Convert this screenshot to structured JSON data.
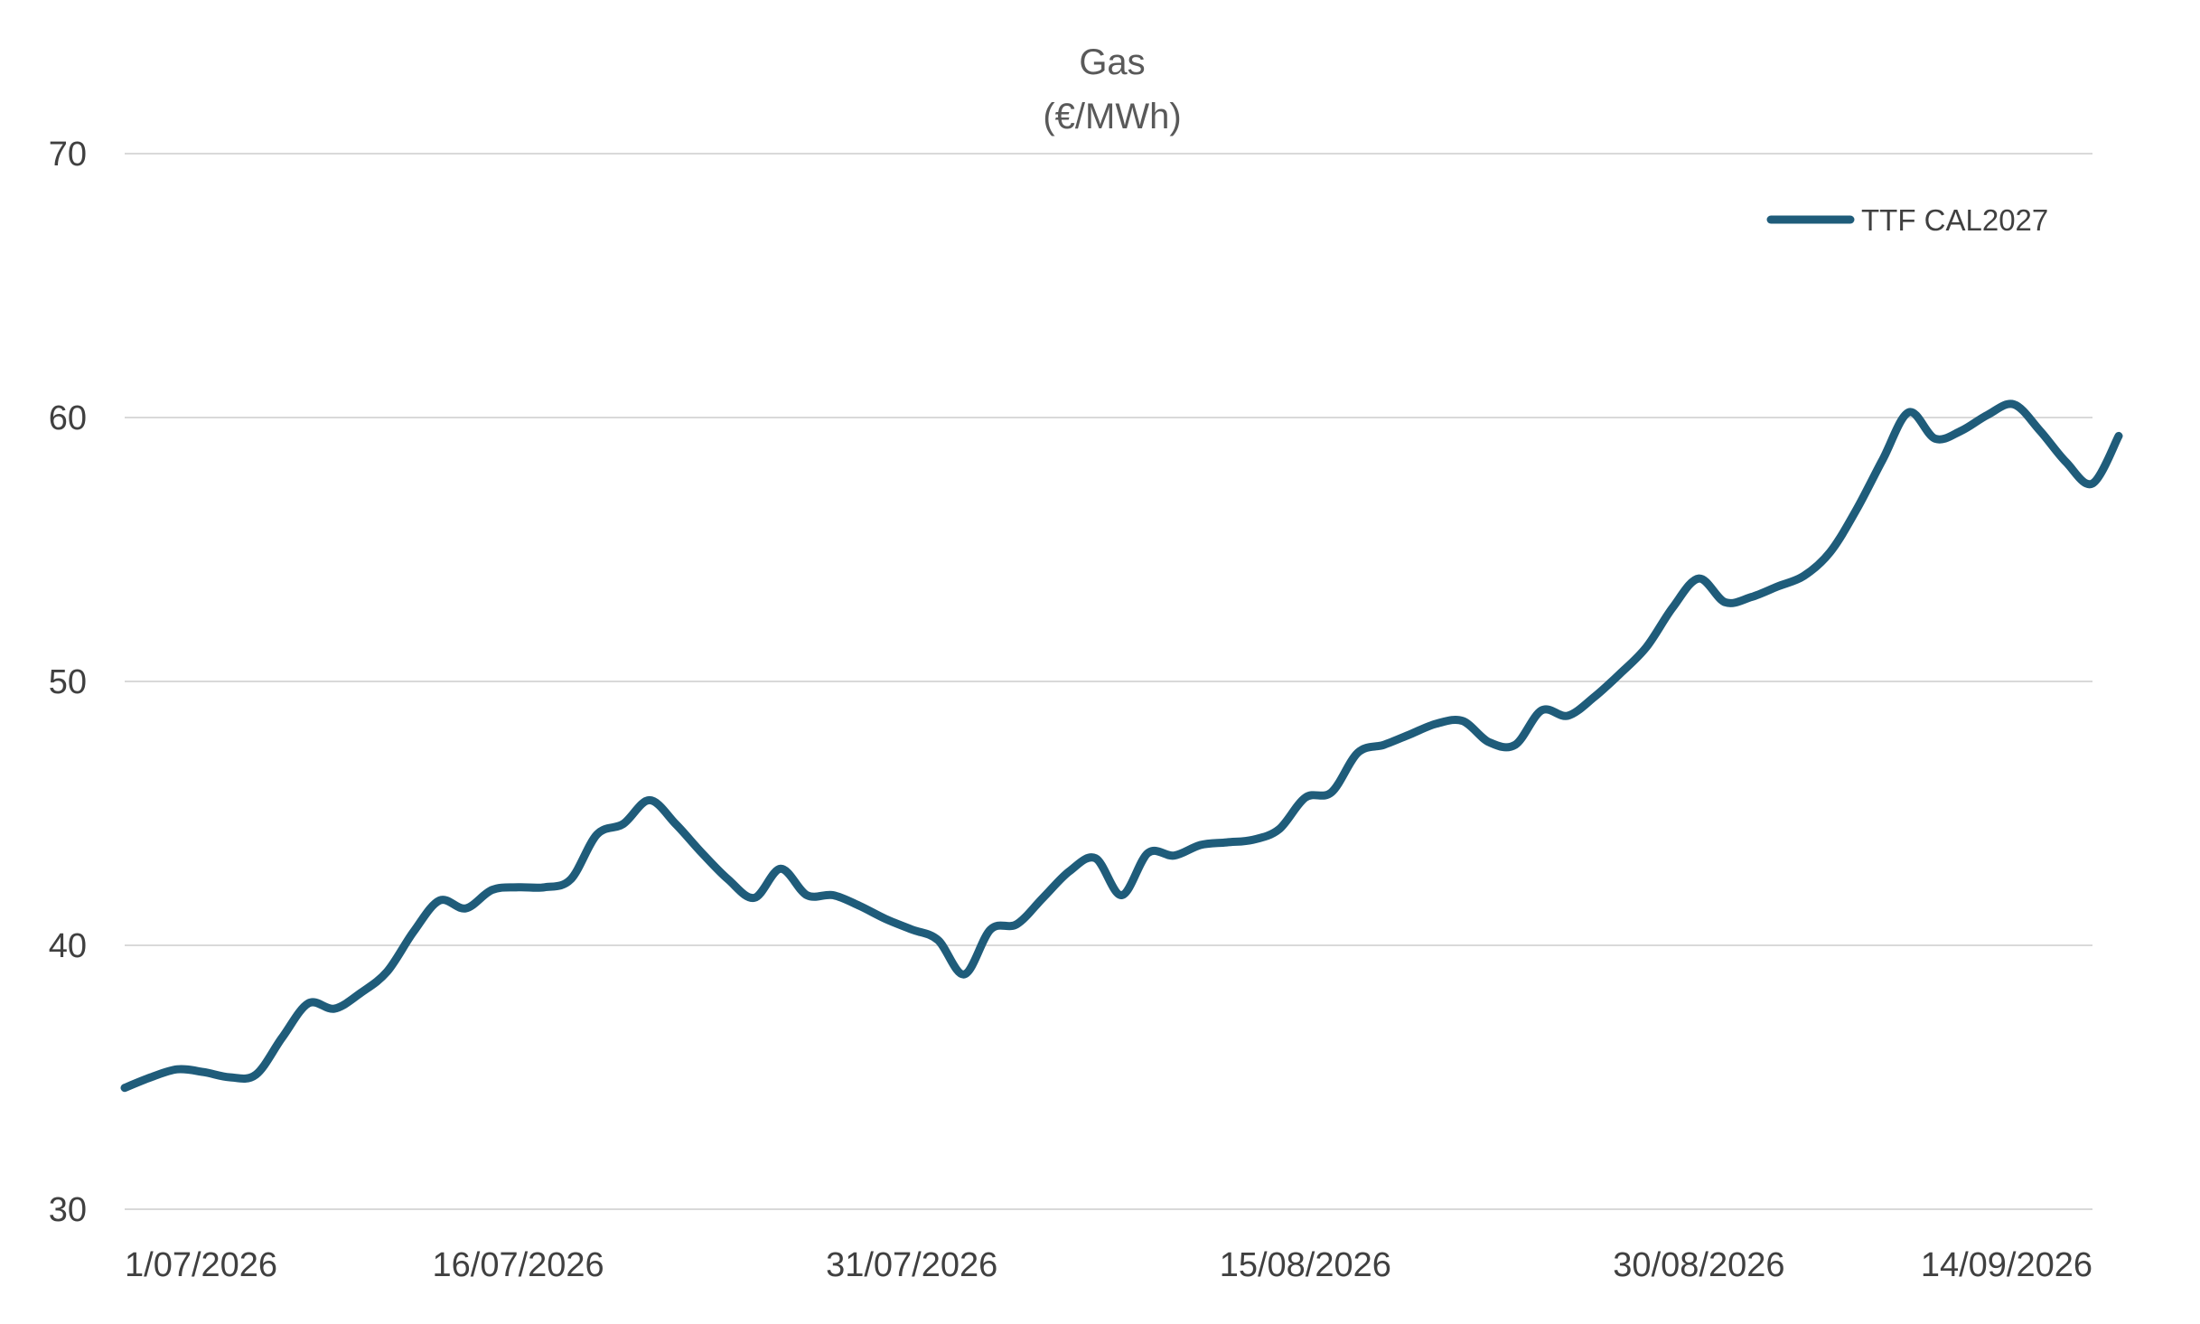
{
  "chart_data": {
    "type": "line",
    "title": "Gas",
    "subtitle": "(€/MWh)",
    "xlabel": "",
    "ylabel": "",
    "ylim": [
      30,
      70
    ],
    "y_ticks": [
      30,
      40,
      50,
      60,
      70
    ],
    "x_ticks": [
      "1/07/2026",
      "16/07/2026",
      "31/07/2026",
      "15/08/2026",
      "30/08/2026",
      "14/09/2026"
    ],
    "xlim": [
      "2026-07-01",
      "2026-09-14"
    ],
    "grid": "horizontal",
    "legend_position": "top-right",
    "series": [
      {
        "name": "TTF CAL2027",
        "color": "#1f5c7a",
        "points": [
          [
            "2026-07-01",
            34.6
          ],
          [
            "2026-07-02",
            35.0
          ],
          [
            "2026-07-03",
            35.3
          ],
          [
            "2026-07-04",
            35.2
          ],
          [
            "2026-07-05",
            35.0
          ],
          [
            "2026-07-06",
            35.1
          ],
          [
            "2026-07-07",
            36.5
          ],
          [
            "2026-07-08",
            37.8
          ],
          [
            "2026-07-09",
            37.6
          ],
          [
            "2026-07-10",
            38.2
          ],
          [
            "2026-07-11",
            39.0
          ],
          [
            "2026-07-12",
            40.5
          ],
          [
            "2026-07-13",
            41.7
          ],
          [
            "2026-07-14",
            41.4
          ],
          [
            "2026-07-15",
            42.1
          ],
          [
            "2026-07-16",
            42.2
          ],
          [
            "2026-07-17",
            42.2
          ],
          [
            "2026-07-18",
            42.5
          ],
          [
            "2026-07-19",
            44.2
          ],
          [
            "2026-07-20",
            44.6
          ],
          [
            "2026-07-21",
            45.5
          ],
          [
            "2026-07-22",
            44.6
          ],
          [
            "2026-07-23",
            43.5
          ],
          [
            "2026-07-24",
            42.5
          ],
          [
            "2026-07-25",
            41.8
          ],
          [
            "2026-07-26",
            42.9
          ],
          [
            "2026-07-27",
            41.9
          ],
          [
            "2026-07-28",
            41.9
          ],
          [
            "2026-07-29",
            41.5
          ],
          [
            "2026-07-30",
            41.0
          ],
          [
            "2026-07-31",
            40.6
          ],
          [
            "2026-08-01",
            40.2
          ],
          [
            "2026-08-02",
            38.9
          ],
          [
            "2026-08-03",
            40.6
          ],
          [
            "2026-08-04",
            40.8
          ],
          [
            "2026-08-05",
            41.8
          ],
          [
            "2026-08-06",
            42.8
          ],
          [
            "2026-08-07",
            43.3
          ],
          [
            "2026-08-08",
            41.9
          ],
          [
            "2026-08-09",
            43.5
          ],
          [
            "2026-08-10",
            43.4
          ],
          [
            "2026-08-11",
            43.8
          ],
          [
            "2026-08-12",
            43.9
          ],
          [
            "2026-08-13",
            44.0
          ],
          [
            "2026-08-14",
            44.4
          ],
          [
            "2026-08-15",
            45.6
          ],
          [
            "2026-08-16",
            45.8
          ],
          [
            "2026-08-17",
            47.3
          ],
          [
            "2026-08-18",
            47.6
          ],
          [
            "2026-08-19",
            48.0
          ],
          [
            "2026-08-20",
            48.4
          ],
          [
            "2026-08-21",
            48.5
          ],
          [
            "2026-08-22",
            47.7
          ],
          [
            "2026-08-23",
            47.6
          ],
          [
            "2026-08-24",
            48.9
          ],
          [
            "2026-08-25",
            48.7
          ],
          [
            "2026-08-26",
            49.4
          ],
          [
            "2026-08-27",
            50.3
          ],
          [
            "2026-08-28",
            51.3
          ],
          [
            "2026-08-29",
            52.8
          ],
          [
            "2026-08-30",
            53.9
          ],
          [
            "2026-08-31",
            53.0
          ],
          [
            "2026-09-01",
            53.2
          ],
          [
            "2026-09-02",
            53.6
          ],
          [
            "2026-09-03",
            54.0
          ],
          [
            "2026-09-04",
            54.9
          ],
          [
            "2026-09-05",
            56.5
          ],
          [
            "2026-09-06",
            58.4
          ],
          [
            "2026-09-07",
            60.2
          ],
          [
            "2026-09-08",
            59.2
          ],
          [
            "2026-09-09",
            59.5
          ],
          [
            "2026-09-10",
            60.1
          ],
          [
            "2026-09-11",
            60.5
          ],
          [
            "2026-09-12",
            59.5
          ],
          [
            "2026-09-13",
            58.3
          ],
          [
            "2026-09-14",
            57.5
          ],
          [
            "2026-09-15",
            59.3
          ]
        ]
      }
    ]
  }
}
